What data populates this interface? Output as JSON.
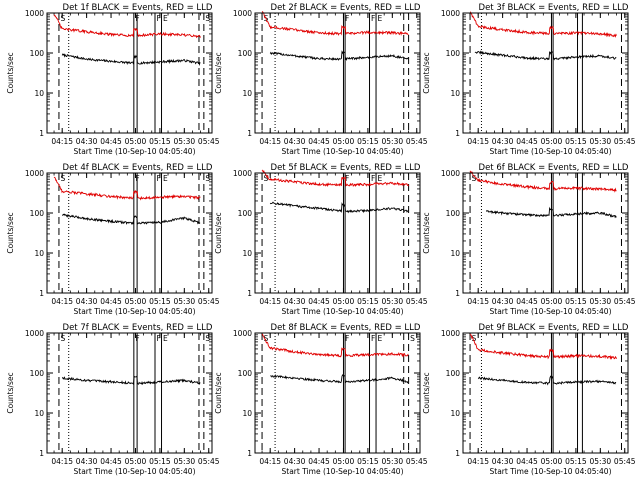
{
  "figure": {
    "ylabel": "Counts/sec",
    "xlabel": "Start Time (10-Sep-10 04:05:40)",
    "x_tick_labels": [
      "04:15",
      "04:30",
      "04:45",
      "05:00",
      "05:15",
      "05:30",
      "05:45"
    ],
    "y_tick_labels": [
      "1",
      "10",
      "100",
      "1000"
    ],
    "colors": {
      "events": "#000000",
      "lld": "#e00000",
      "axes": "#000000"
    }
  },
  "chart_data": [
    {
      "type": "line",
      "detector": "1f",
      "title": "Det 1f BLACK = Events, RED = LLD",
      "xlim": [
        "04:05:40",
        "05:47:00"
      ],
      "ylim": [
        1,
        1000
      ],
      "yscale": "log",
      "events_start": "04:15",
      "lld_start": "04:10",
      "series": [
        {
          "name": "Events",
          "color": "#000000",
          "x": [
            "04:15",
            "04:30",
            "04:45",
            "05:00",
            "05:15",
            "05:30",
            "05:40"
          ],
          "y": [
            90,
            70,
            62,
            55,
            60,
            65,
            55
          ]
        },
        {
          "name": "LLD",
          "color": "#e00000",
          "x": [
            "04:10",
            "04:15",
            "04:30",
            "04:45",
            "05:00",
            "05:15",
            "05:30",
            "05:40"
          ],
          "y": [
            700,
            400,
            340,
            290,
            270,
            300,
            280,
            260
          ]
        }
      ],
      "markers": [
        {
          "time": "04:13",
          "style": "dashed",
          "label": "S"
        },
        {
          "time": "04:19",
          "style": "dotted",
          "label": ""
        },
        {
          "time": "04:59",
          "style": "solid",
          "label": "F"
        },
        {
          "time": "05:01",
          "style": "solid",
          "label": ""
        },
        {
          "time": "05:12",
          "style": "solid",
          "label": "F"
        },
        {
          "time": "05:16",
          "style": "solid",
          "label": "E"
        },
        {
          "time": "05:39",
          "style": "dashed",
          "label": ""
        },
        {
          "time": "05:42",
          "style": "dashed",
          "label": "S"
        }
      ]
    },
    {
      "type": "line",
      "detector": "2f",
      "title": "Det 2f BLACK = Events, RED = LLD",
      "xlim": [
        "04:05:40",
        "05:47:00"
      ],
      "ylim": [
        1,
        1000
      ],
      "yscale": "log",
      "events_start": "04:15",
      "lld_start": "04:10",
      "series": [
        {
          "name": "Events",
          "color": "#000000",
          "x": [
            "04:15",
            "04:30",
            "04:45",
            "05:00",
            "05:15",
            "05:30",
            "05:40"
          ],
          "y": [
            100,
            85,
            72,
            70,
            78,
            85,
            70
          ]
        },
        {
          "name": "LLD",
          "color": "#e00000",
          "x": [
            "04:10",
            "04:15",
            "04:30",
            "04:45",
            "05:00",
            "05:15",
            "05:30",
            "05:40"
          ],
          "y": [
            800,
            450,
            380,
            320,
            300,
            330,
            320,
            300
          ]
        }
      ],
      "markers": [
        {
          "time": "04:10",
          "style": "dashed",
          "label": "S"
        },
        {
          "time": "04:18",
          "style": "dotted",
          "label": ""
        },
        {
          "time": "05:00",
          "style": "solid",
          "label": "F"
        },
        {
          "time": "05:01",
          "style": "solid",
          "label": ""
        },
        {
          "time": "05:16",
          "style": "solid",
          "label": "F"
        },
        {
          "time": "05:20",
          "style": "solid",
          "label": "E"
        },
        {
          "time": "05:37",
          "style": "dashed",
          "label": ""
        },
        {
          "time": "05:40",
          "style": "dashed",
          "label": ""
        }
      ]
    },
    {
      "type": "line",
      "detector": "3f",
      "title": "Det 3f BLACK = Events, RED = LLD",
      "xlim": [
        "04:05:40",
        "05:47:00"
      ],
      "ylim": [
        1,
        1000
      ],
      "yscale": "log",
      "events_start": "04:13",
      "lld_start": "04:10",
      "series": [
        {
          "name": "Events",
          "color": "#000000",
          "x": [
            "04:13",
            "04:30",
            "04:45",
            "05:00",
            "05:15",
            "05:30",
            "05:40"
          ],
          "y": [
            105,
            88,
            75,
            70,
            80,
            85,
            72
          ]
        },
        {
          "name": "LLD",
          "color": "#e00000",
          "x": [
            "04:10",
            "04:15",
            "04:30",
            "04:45",
            "05:00",
            "05:15",
            "05:30",
            "05:40"
          ],
          "y": [
            800,
            460,
            380,
            330,
            300,
            320,
            300,
            270
          ]
        }
      ],
      "markers": [
        {
          "time": "04:10",
          "style": "dashed",
          "label": ""
        },
        {
          "time": "04:17",
          "style": "dotted",
          "label": ""
        },
        {
          "time": "05:00",
          "style": "solid",
          "label": ""
        },
        {
          "time": "05:01",
          "style": "solid",
          "label": ""
        },
        {
          "time": "05:16",
          "style": "solid",
          "label": ""
        },
        {
          "time": "05:19",
          "style": "solid",
          "label": ""
        },
        {
          "time": "05:43",
          "style": "dashed",
          "label": ""
        }
      ]
    },
    {
      "type": "line",
      "detector": "4f",
      "title": "Det 4f BLACK = Events, RED = LLD",
      "xlim": [
        "04:05:40",
        "05:47:00"
      ],
      "ylim": [
        1,
        1000
      ],
      "yscale": "log",
      "events_start": "04:15",
      "lld_start": "04:10",
      "series": [
        {
          "name": "Events",
          "color": "#000000",
          "x": [
            "04:15",
            "04:30",
            "04:45",
            "05:00",
            "05:15",
            "05:30",
            "05:40"
          ],
          "y": [
            90,
            72,
            62,
            55,
            58,
            75,
            55
          ]
        },
        {
          "name": "LLD",
          "color": "#e00000",
          "x": [
            "04:10",
            "04:15",
            "04:30",
            "04:45",
            "05:00",
            "05:15",
            "05:30",
            "05:40"
          ],
          "y": [
            600,
            350,
            300,
            260,
            230,
            250,
            260,
            240
          ]
        }
      ],
      "markers": [
        {
          "time": "04:13",
          "style": "dashed",
          "label": "S"
        },
        {
          "time": "04:19",
          "style": "dotted",
          "label": ""
        },
        {
          "time": "04:59",
          "style": "solid",
          "label": "F"
        },
        {
          "time": "05:01",
          "style": "solid",
          "label": ""
        },
        {
          "time": "05:12",
          "style": "solid",
          "label": "F"
        },
        {
          "time": "05:16",
          "style": "solid",
          "label": "E"
        },
        {
          "time": "05:39",
          "style": "dashed",
          "label": ""
        },
        {
          "time": "05:42",
          "style": "dashed",
          "label": "S"
        }
      ]
    },
    {
      "type": "line",
      "detector": "5f",
      "title": "Det 5f BLACK = Events, RED = LLD",
      "xlim": [
        "04:05:40",
        "05:47:00"
      ],
      "ylim": [
        1,
        1000
      ],
      "yscale": "log",
      "events_start": "04:15",
      "lld_start": "04:10",
      "series": [
        {
          "name": "Events",
          "color": "#000000",
          "x": [
            "04:15",
            "04:30",
            "04:45",
            "05:00",
            "05:15",
            "05:30",
            "05:40"
          ],
          "y": [
            180,
            150,
            130,
            110,
            115,
            130,
            110
          ]
        },
        {
          "name": "LLD",
          "color": "#e00000",
          "x": [
            "04:10",
            "04:15",
            "04:30",
            "04:45",
            "05:00",
            "05:15",
            "05:30",
            "05:40"
          ],
          "y": [
            900,
            700,
            600,
            520,
            500,
            520,
            560,
            500
          ]
        }
      ],
      "markers": [
        {
          "time": "04:10",
          "style": "dashed",
          "label": "S"
        },
        {
          "time": "04:18",
          "style": "dotted",
          "label": ""
        },
        {
          "time": "05:00",
          "style": "solid",
          "label": "F"
        },
        {
          "time": "05:01",
          "style": "solid",
          "label": ""
        },
        {
          "time": "05:16",
          "style": "solid",
          "label": "F"
        },
        {
          "time": "05:20",
          "style": "solid",
          "label": "E"
        },
        {
          "time": "05:37",
          "style": "dashed",
          "label": ""
        },
        {
          "time": "05:40",
          "style": "dashed",
          "label": ""
        }
      ]
    },
    {
      "type": "line",
      "detector": "6f",
      "title": "Det 6f BLACK = Events, RED = LLD",
      "xlim": [
        "04:05:40",
        "05:47:00"
      ],
      "ylim": [
        1,
        1000
      ],
      "yscale": "log",
      "events_start": "04:20",
      "lld_start": "04:10",
      "series": [
        {
          "name": "Events",
          "color": "#000000",
          "x": [
            "04:20",
            "04:30",
            "04:45",
            "05:00",
            "05:15",
            "05:30",
            "05:40"
          ],
          "y": [
            110,
            100,
            90,
            85,
            95,
            100,
            80
          ]
        },
        {
          "name": "LLD",
          "color": "#e00000",
          "x": [
            "04:10",
            "04:15",
            "04:30",
            "04:45",
            "05:00",
            "05:15",
            "05:30",
            "05:40"
          ],
          "y": [
            850,
            650,
            520,
            450,
            400,
            420,
            400,
            370
          ]
        }
      ],
      "markers": [
        {
          "time": "04:10",
          "style": "dashed",
          "label": "S"
        },
        {
          "time": "04:17",
          "style": "dotted",
          "label": ""
        },
        {
          "time": "05:00",
          "style": "solid",
          "label": ""
        },
        {
          "time": "05:01",
          "style": "solid",
          "label": ""
        },
        {
          "time": "05:16",
          "style": "solid",
          "label": ""
        },
        {
          "time": "05:19",
          "style": "solid",
          "label": ""
        },
        {
          "time": "05:43",
          "style": "dashed",
          "label": ""
        }
      ]
    },
    {
      "type": "line",
      "detector": "7f",
      "title": "Det 7f BLACK = Events, RED = LLD",
      "xlim": [
        "04:05:40",
        "05:47:00"
      ],
      "ylim": [
        1,
        1000
      ],
      "yscale": "log",
      "events_start": "04:15",
      "lld_start": null,
      "series": [
        {
          "name": "Events",
          "color": "#000000",
          "x": [
            "04:15",
            "04:30",
            "04:45",
            "05:00",
            "05:15",
            "05:30",
            "05:40"
          ],
          "y": [
            75,
            65,
            60,
            55,
            60,
            65,
            55
          ]
        }
      ],
      "markers": [
        {
          "time": "04:13",
          "style": "dashed",
          "label": "S"
        },
        {
          "time": "04:19",
          "style": "dotted",
          "label": ""
        },
        {
          "time": "04:59",
          "style": "solid",
          "label": "F"
        },
        {
          "time": "05:01",
          "style": "solid",
          "label": ""
        },
        {
          "time": "05:12",
          "style": "solid",
          "label": "F"
        },
        {
          "time": "05:16",
          "style": "solid",
          "label": "E"
        },
        {
          "time": "05:39",
          "style": "dashed",
          "label": ""
        },
        {
          "time": "05:42",
          "style": "dashed",
          "label": "S"
        }
      ]
    },
    {
      "type": "line",
      "detector": "8f",
      "title": "Det 8f BLACK = Events, RED = LLD",
      "xlim": [
        "04:05:40",
        "05:47:00"
      ],
      "ylim": [
        1,
        1000
      ],
      "yscale": "log",
      "events_start": "04:15",
      "lld_start": "04:10",
      "series": [
        {
          "name": "Events",
          "color": "#000000",
          "x": [
            "04:15",
            "04:30",
            "04:45",
            "05:00",
            "05:15",
            "05:30",
            "05:40"
          ],
          "y": [
            85,
            75,
            65,
            60,
            65,
            75,
            60
          ]
        },
        {
          "name": "LLD",
          "color": "#e00000",
          "x": [
            "04:10",
            "04:15",
            "04:30",
            "04:45",
            "05:00",
            "05:15",
            "05:30",
            "05:40"
          ],
          "y": [
            700,
            420,
            340,
            290,
            270,
            290,
            300,
            280
          ]
        }
      ],
      "markers": [
        {
          "time": "04:10",
          "style": "dashed",
          "label": "S"
        },
        {
          "time": "04:18",
          "style": "dotted",
          "label": ""
        },
        {
          "time": "05:00",
          "style": "solid",
          "label": "F"
        },
        {
          "time": "05:01",
          "style": "solid",
          "label": ""
        },
        {
          "time": "05:16",
          "style": "solid",
          "label": "F"
        },
        {
          "time": "05:20",
          "style": "solid",
          "label": "E"
        },
        {
          "time": "05:37",
          "style": "dashed",
          "label": ""
        },
        {
          "time": "05:40",
          "style": "dashed",
          "label": "S"
        }
      ]
    },
    {
      "type": "line",
      "detector": "9f",
      "title": "Det 9f BLACK = Events, RED = LLD",
      "xlim": [
        "04:05:40",
        "05:47:00"
      ],
      "ylim": [
        1,
        1000
      ],
      "yscale": "log",
      "events_start": "04:15",
      "lld_start": "04:10",
      "series": [
        {
          "name": "Events",
          "color": "#000000",
          "x": [
            "04:15",
            "04:30",
            "04:45",
            "05:00",
            "05:15",
            "05:30",
            "05:40"
          ],
          "y": [
            75,
            65,
            58,
            55,
            60,
            62,
            55
          ]
        },
        {
          "name": "LLD",
          "color": "#e00000",
          "x": [
            "04:10",
            "04:15",
            "04:30",
            "04:45",
            "05:00",
            "05:15",
            "05:30",
            "05:40"
          ],
          "y": [
            700,
            380,
            320,
            270,
            250,
            270,
            260,
            240
          ]
        }
      ],
      "markers": [
        {
          "time": "04:10",
          "style": "dashed",
          "label": "S"
        },
        {
          "time": "04:17",
          "style": "dotted",
          "label": ""
        },
        {
          "time": "05:00",
          "style": "solid",
          "label": ""
        },
        {
          "time": "05:01",
          "style": "solid",
          "label": ""
        },
        {
          "time": "05:16",
          "style": "solid",
          "label": ""
        },
        {
          "time": "05:19",
          "style": "solid",
          "label": ""
        },
        {
          "time": "05:43",
          "style": "dashed",
          "label": ""
        }
      ]
    }
  ]
}
